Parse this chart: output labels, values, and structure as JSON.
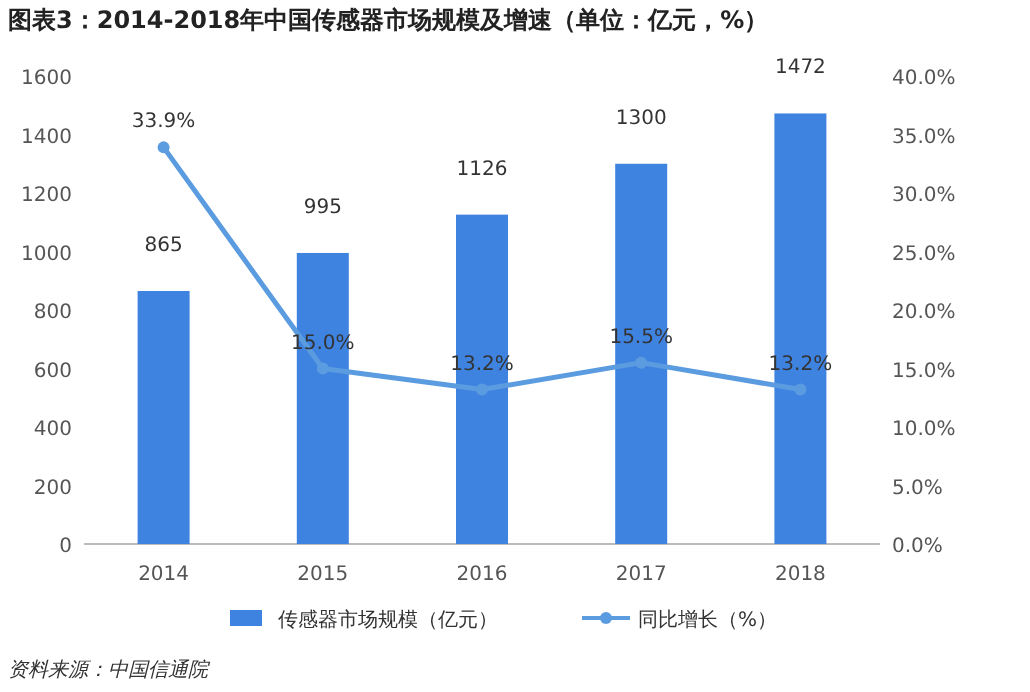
{
  "chart_data": {
    "type": "bar",
    "title": "图表3：2014-2018年中国传感器市场规模及增速（单位：亿元，%）",
    "categories": [
      "2014",
      "2015",
      "2016",
      "2017",
      "2018"
    ],
    "series": [
      {
        "name": "传感器市场规模（亿元）",
        "color": "#3f83e0",
        "values": [
          865,
          995,
          1126,
          1300,
          1472
        ],
        "value_labels": [
          "865",
          "995",
          "1126",
          "1300",
          "1472"
        ]
      },
      {
        "name": "同比增长（%）",
        "type": "line",
        "axis": "y2",
        "color": "#5b9bdf",
        "marker": "circle",
        "values": [
          33.9,
          15.0,
          13.2,
          15.5,
          13.2
        ],
        "value_labels": [
          "33.9%",
          "15.0%",
          "13.2%",
          "15.5%",
          "13.2%"
        ]
      }
    ],
    "ylim": [
      0,
      1600
    ],
    "yticks": [
      0,
      200,
      400,
      600,
      800,
      1000,
      1200,
      1400,
      1600
    ],
    "y2lim": [
      0,
      40
    ],
    "y2ticks": [
      {
        "value": 0,
        "label": "0.0%"
      },
      {
        "value": 5,
        "label": "5.0%"
      },
      {
        "value": 10,
        "label": "10.0%"
      },
      {
        "value": 15,
        "label": "15.0%"
      },
      {
        "value": 20,
        "label": "20.0%"
      },
      {
        "value": 25,
        "label": "25.0%"
      },
      {
        "value": 30,
        "label": "30.0%"
      },
      {
        "value": 35,
        "label": "35.0%"
      },
      {
        "value": 40,
        "label": "40.0%"
      }
    ],
    "legend": "bottom",
    "annotations": [
      "资料来源：中国信通院"
    ]
  }
}
